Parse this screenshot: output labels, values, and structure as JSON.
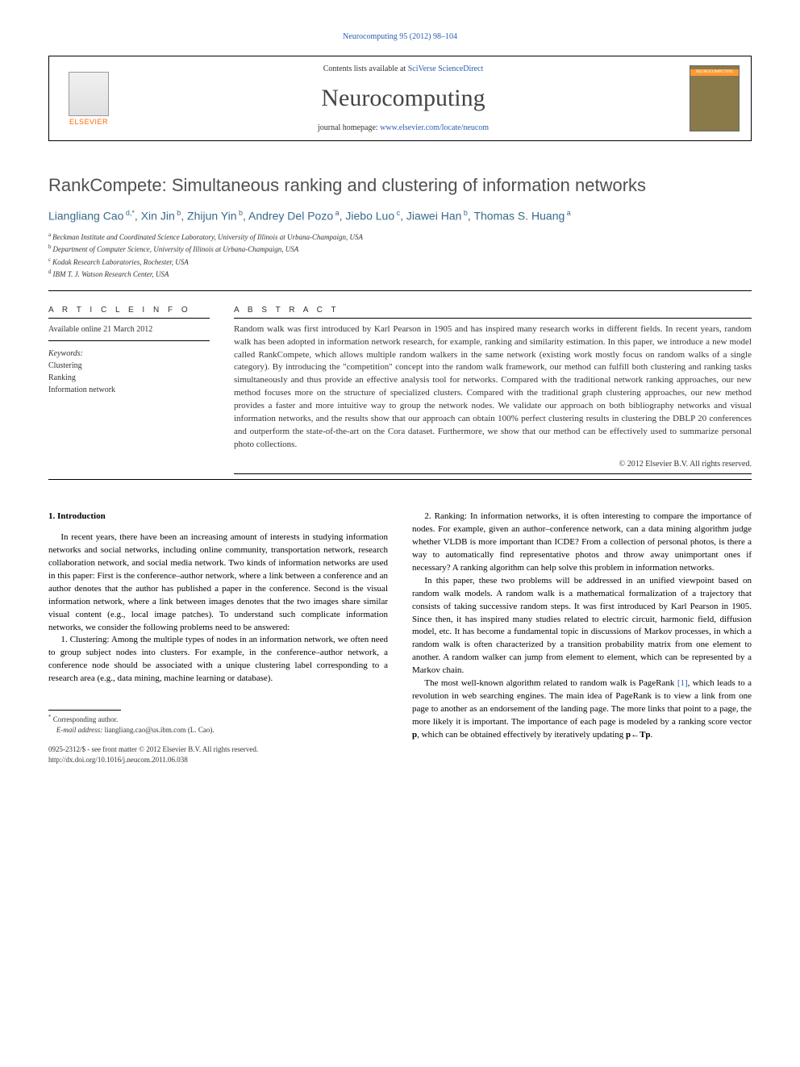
{
  "header": {
    "citation": "Neurocomputing 95 (2012) 98–104",
    "contents_prefix": "Contents lists available at ",
    "contents_link": "SciVerse ScienceDirect",
    "journal_title": "Neurocomputing",
    "homepage_prefix": "journal homepage: ",
    "homepage_url": "www.elsevier.com/locate/neucom",
    "elsevier_label": "ELSEVIER",
    "cover_label": "NEUROCOMPUTING"
  },
  "article": {
    "title": "RankCompete: Simultaneous ranking and clustering of information networks",
    "authors_html": "Liangliang Cao",
    "authors": [
      {
        "name": "Liangliang Cao",
        "sup": "d,*"
      },
      {
        "name": "Xin Jin",
        "sup": "b"
      },
      {
        "name": "Zhijun Yin",
        "sup": "b"
      },
      {
        "name": "Andrey Del Pozo",
        "sup": "a"
      },
      {
        "name": "Jiebo Luo",
        "sup": "c"
      },
      {
        "name": "Jiawei Han",
        "sup": "b"
      },
      {
        "name": "Thomas S. Huang",
        "sup": "a"
      }
    ],
    "affiliations": [
      {
        "sup": "a",
        "text": "Beckman Institute and Coordinated Science Laboratory, University of Illinois at Urbana-Champaign, USA"
      },
      {
        "sup": "b",
        "text": "Department of Computer Science, University of Illinois at Urbana-Champaign, USA"
      },
      {
        "sup": "c",
        "text": "Kodak Research Laboratories, Rochester, USA"
      },
      {
        "sup": "d",
        "text": "IBM T. J. Watson Research Center, USA"
      }
    ]
  },
  "article_info": {
    "heading": "A R T I C L E  I N F O",
    "available_online": "Available online 21 March 2012",
    "keywords_label": "Keywords:",
    "keywords": [
      "Clustering",
      "Ranking",
      "Information network"
    ]
  },
  "abstract": {
    "heading": "A B S T R A C T",
    "text": "Random walk was first introduced by Karl Pearson in 1905 and has inspired many research works in different fields. In recent years, random walk has been adopted in information network research, for example, ranking and similarity estimation. In this paper, we introduce a new model called RankCompete, which allows multiple random walkers in the same network (existing work mostly focus on random walks of a single category). By introducing the \"competition\" concept into the random walk framework, our method can fulfill both clustering and ranking tasks simultaneously and thus provide an effective analysis tool for networks. Compared with the traditional network ranking approaches, our new method focuses more on the structure of specialized clusters. Compared with the traditional graph clustering approaches, our new method provides a faster and more intuitive way to group the network nodes. We validate our approach on both bibliography networks and visual information networks, and the results show that our approach can obtain 100% perfect clustering results in clustering the DBLP 20 conferences and outperform the state-of-the-art on the Cora dataset. Furthermore, we show that our method can be effectively used to summarize personal photo collections.",
    "copyright": "© 2012 Elsevier B.V. All rights reserved."
  },
  "body": {
    "section1_heading": "1. Introduction",
    "col1_p1": "In recent years, there have been an increasing amount of interests in studying information networks and social networks, including online community, transportation network, research collaboration network, and social media network. Two kinds of information networks are used in this paper: First is the conference–author network, where a link between a conference and an author denotes that the author has published a paper in the conference. Second is the visual information network, where a link between images denotes that the two images share similar visual content (e.g., local image patches). To understand such complicate information networks, we consider the following problems need to be answered:",
    "col1_p2_lead": "1. Clustering",
    "col1_p2_rest": ": Among the multiple types of nodes in an information network, we often need to group subject nodes into clusters. For example, in the conference–author network, a conference node should be associated with a unique clustering label corresponding to a research area (e.g., data mining, machine learning or database).",
    "col2_p1_lead": "2. Ranking",
    "col2_p1_rest": ": In information networks, it is often interesting to compare the importance of nodes. For example, given an author–conference network, can a data mining algorithm judge whether VLDB is more important than ICDE? From a collection of personal photos, is there a way to automatically find representative photos and throw away unimportant ones if necessary? A ranking algorithm can help solve this problem in information networks.",
    "col2_p2": "In this paper, these two problems will be addressed in an unified viewpoint based on random walk models. A random walk is a mathematical formalization of a trajectory that consists of taking successive random steps. It was first introduced by Karl Pearson in 1905. Since then, it has inspired many studies related to electric circuit, harmonic field, diffusion model, etc. It has become a fundamental topic in discussions of Markov processes, in which a random walk is often characterized by a transition probability matrix from one element to another. A random walker can jump from element to element, which can be represented by a Markov chain.",
    "col2_p3_a": "The most well-known algorithm related to random walk is PageRank ",
    "col2_p3_ref": "[1]",
    "col2_p3_b": ", which leads to a revolution in web searching engines. The main idea of PageRank is to view a link from one page to another as an endorsement of the landing page. The more links that point to a page, the more likely it is important. The importance of each page is modeled by a ranking score vector ",
    "col2_p3_p": "p",
    "col2_p3_c": ", which can be obtained effectively by iteratively updating ",
    "col2_p3_eq_lhs": "p",
    "col2_p3_eq_arrow": "←",
    "col2_p3_eq_rhs": "Tp",
    "col2_p3_d": "."
  },
  "footer": {
    "corresponding": "Corresponding author.",
    "email_label": "E-mail address:",
    "email": "liangliang.cao@us.ibm.com (L. Cao).",
    "front_matter": "0925-2312/$ - see front matter © 2012 Elsevier B.V. All rights reserved.",
    "doi": "http://dx.doi.org/10.1016/j.neucom.2011.06.038"
  }
}
